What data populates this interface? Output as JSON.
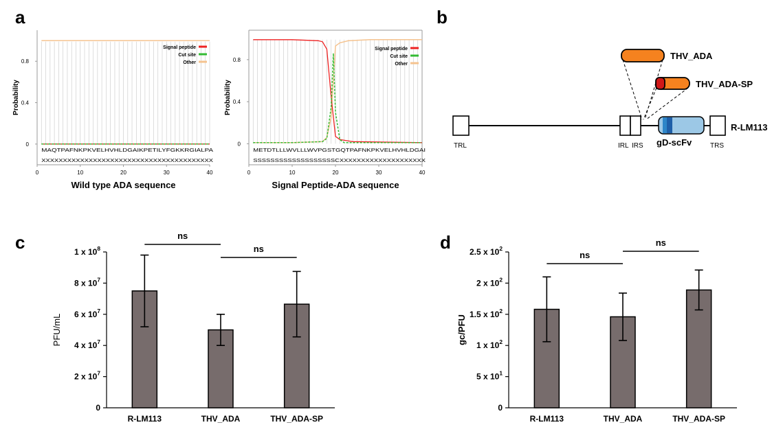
{
  "panel_labels": {
    "a": "a",
    "b": "b",
    "c": "c",
    "d": "d"
  },
  "chart_data": [
    {
      "type": "line",
      "panel": "a-left",
      "title": "",
      "xlabel": "Wild type ADA sequence",
      "ylabel": "Probability",
      "xlim": [
        0,
        40
      ],
      "ylim": [
        -0.2,
        1.1
      ],
      "xticks": [
        0,
        10,
        20,
        30,
        40
      ],
      "yticks": [
        0,
        0.4,
        0.8
      ],
      "ytick_labels": [
        "0",
        "0.4",
        "0.8"
      ],
      "sequence": "MAQTPAFNKPKVELHVHLDGAIKPETILYFGKKRGIALPA",
      "annotation": "XXXXXXXXXXXXXXXXXXXXXXXXXXXXXXXXXXXXXXXX",
      "legend": [
        "Signal peptide",
        "Cut site",
        "Other"
      ],
      "colors": {
        "signal": "#ee2222",
        "cut": "#33bb33",
        "other": "#f5c38f"
      },
      "x": [
        1,
        40
      ],
      "series": [
        {
          "name": "Signal peptide",
          "values": [
            0,
            0
          ]
        },
        {
          "name": "Cut site",
          "values": [
            0,
            0
          ]
        },
        {
          "name": "Other",
          "values": [
            1,
            1
          ]
        }
      ]
    },
    {
      "type": "line",
      "panel": "a-right",
      "title": "",
      "xlabel": "Signal Peptide-ADA sequence",
      "ylabel": "Probability",
      "xlim": [
        0,
        40
      ],
      "ylim": [
        -0.2,
        1.08
      ],
      "xticks": [
        0,
        10,
        20,
        30,
        40
      ],
      "yticks": [
        0,
        0.4,
        0.8
      ],
      "ytick_labels": [
        "0",
        "0.4",
        "0.8"
      ],
      "sequence": "METDTLLLWVLLLWVPGSTGQTPAFNKPKVELHVHLDGAI",
      "annotation": "SSSSSSSSSSSSSSSSSSSCXXXXXXXXXXXXXXXXXXXX",
      "legend": [
        "Signal peptide",
        "Cut site",
        "Other"
      ],
      "colors": {
        "signal": "#ee2222",
        "cut": "#33bb33",
        "other": "#f5c38f"
      },
      "series": [
        {
          "name": "Signal peptide",
          "x": [
            1,
            10,
            16,
            17,
            18,
            19,
            20,
            21,
            24,
            40
          ],
          "values": [
            0.99,
            0.99,
            0.98,
            0.97,
            0.9,
            0.45,
            0.07,
            0.04,
            0.02,
            0.01
          ]
        },
        {
          "name": "Cut site",
          "x": [
            1,
            10,
            17,
            18,
            19,
            19.5,
            20,
            21,
            22,
            40
          ],
          "values": [
            0.01,
            0.01,
            0.02,
            0.05,
            0.35,
            0.86,
            0.3,
            0.04,
            0.01,
            0.01
          ]
        },
        {
          "name": "Other",
          "x": [
            1,
            10,
            17,
            18,
            19,
            20,
            21,
            23,
            28,
            40
          ],
          "values": [
            0.01,
            0.01,
            0.02,
            0.06,
            0.25,
            0.93,
            0.96,
            0.98,
            0.99,
            0.99
          ]
        }
      ]
    },
    {
      "type": "bar",
      "panel": "c",
      "title": "",
      "xlabel": "",
      "ylabel": "PFU/mL",
      "categories": [
        "R-LM113",
        "THV_ADA",
        "THV_ADA-SP"
      ],
      "values": [
        75000000,
        50000000,
        66500000
      ],
      "errors": [
        23000000,
        10000000,
        21000000
      ],
      "ylim": [
        0,
        100000000
      ],
      "yticks": [
        0,
        20000000,
        40000000,
        60000000,
        80000000,
        100000000
      ],
      "ytick_labels": [
        "0",
        "2 x 10^7",
        "4 x 10^7",
        "6 x 10^7",
        "8 x 10^7",
        "1 x 10^8"
      ],
      "bar_color": "#776c6c",
      "significance": [
        {
          "from": "R-LM113",
          "to": "THV_ADA",
          "label": "ns"
        },
        {
          "from": "THV_ADA",
          "to": "THV_ADA-SP",
          "label": "ns"
        }
      ]
    },
    {
      "type": "bar",
      "panel": "d",
      "title": "",
      "xlabel": "",
      "ylabel": "gc/PFU",
      "categories": [
        "R-LM113",
        "THV_ADA",
        "THV_ADA-SP"
      ],
      "values": [
        158,
        146,
        189
      ],
      "errors": [
        52,
        38,
        32
      ],
      "ylim": [
        0,
        250
      ],
      "yticks": [
        0,
        50,
        100,
        150,
        200,
        250
      ],
      "ytick_labels": [
        "0",
        "5 x 10^1",
        "1 x 10^2",
        "1.5 x 10^2",
        "2 x 10^2",
        "2.5 x 10^2"
      ],
      "bar_color": "#776c6c",
      "significance": [
        {
          "from": "R-LM113",
          "to": "THV_ADA",
          "label": "ns"
        },
        {
          "from": "THV_ADA",
          "to": "THV_ADA-SP",
          "label": "ns"
        }
      ]
    }
  ],
  "diagram": {
    "genome_name": "R-LM113",
    "labels": {
      "trl": "TRL",
      "irl": "IRL",
      "irs": "IRS",
      "trs": "TRS",
      "gd": "gD-scFv"
    },
    "constructs": [
      "THV_ADA",
      "THV_ADA-SP"
    ],
    "colors": {
      "ada": "#f5821f",
      "sp": "#d01818",
      "gd_light": "#9cc8e6",
      "gd_dark": "#1f5fa8"
    }
  }
}
